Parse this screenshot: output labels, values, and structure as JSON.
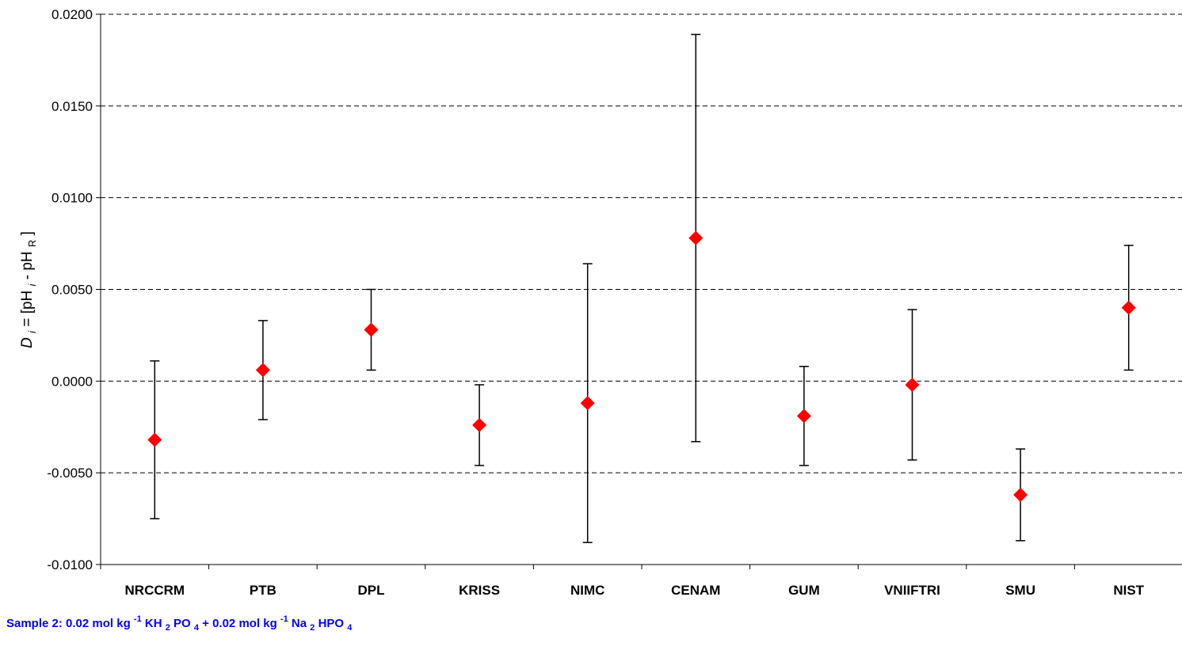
{
  "chart_data": {
    "type": "scatter",
    "categories": [
      "NRCCRM",
      "PTB",
      "DPL",
      "KRISS",
      "NIMC",
      "CENAM",
      "GUM",
      "VNIIFTRI",
      "SMU",
      "NIST"
    ],
    "values": [
      -0.0032,
      0.0006,
      0.0028,
      -0.0024,
      -0.0012,
      0.0078,
      -0.0019,
      -0.0002,
      -0.0062,
      0.004
    ],
    "error_upper": [
      0.0011,
      0.0033,
      0.005,
      -0.0002,
      0.0064,
      0.0189,
      0.0008,
      0.0039,
      -0.0037,
      0.0074
    ],
    "error_lower": [
      -0.0075,
      -0.0021,
      0.0006,
      -0.0046,
      -0.0088,
      -0.0033,
      -0.0046,
      -0.0043,
      -0.0087,
      0.0006
    ],
    "ylim": [
      -0.01,
      0.02
    ],
    "yticks": [
      "-0.0100",
      "-0.0050",
      "0.0000",
      "0.0050",
      "0.0100",
      "0.0150",
      "0.0200"
    ],
    "ytick_values": [
      -0.01,
      -0.005,
      0.0,
      0.005,
      0.01,
      0.015,
      0.02
    ],
    "ylabel": {
      "d": "D",
      "i_sub": "i",
      "eq": " = [pH",
      "i_sub2": "i",
      "mid": " - pH",
      "r_sub": "R",
      "close": "]"
    },
    "grid": "horizontal dashed",
    "marker_color": "#ff0000",
    "error_color": "#000000"
  },
  "caption": {
    "p1": "Sample 2: 0.02 mol kg",
    "sup1": "-1",
    "p2": " KH",
    "sub1": "2",
    "p3": "PO",
    "sub2": "4",
    "p4": " + 0.02 mol kg",
    "sup2": "-1",
    "p5": " Na",
    "sub3": "2",
    "p6": "HPO",
    "sub4": "4"
  }
}
